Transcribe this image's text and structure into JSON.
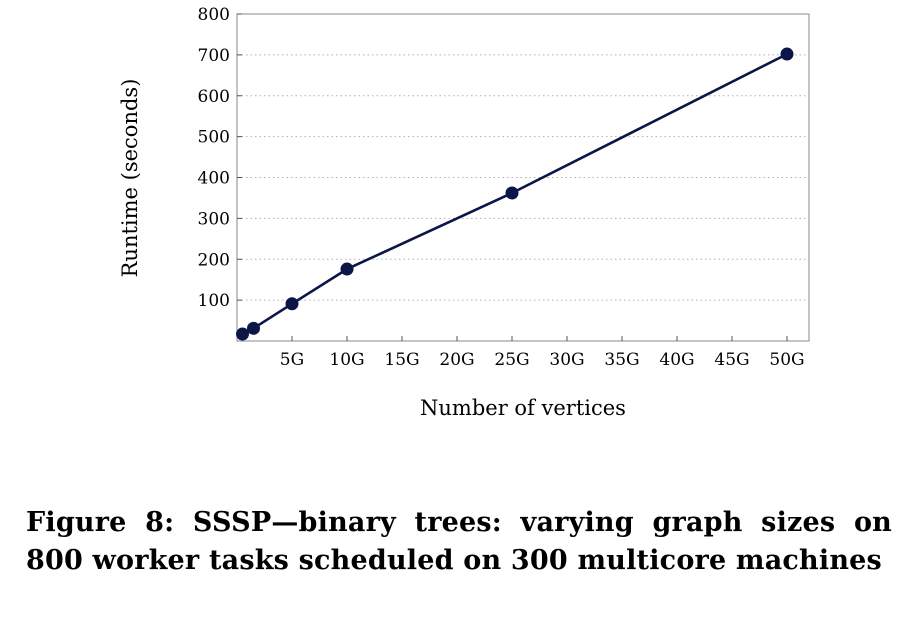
{
  "chart_data": {
    "type": "line",
    "title": "",
    "xlabel": "Number of vertices",
    "ylabel": "Runtime (seconds)",
    "xlim": [
      0,
      52
    ],
    "ylim": [
      0,
      800
    ],
    "x_ticks": [
      {
        "value": 5,
        "label": "5G"
      },
      {
        "value": 10,
        "label": "10G"
      },
      {
        "value": 15,
        "label": "15G"
      },
      {
        "value": 20,
        "label": "20G"
      },
      {
        "value": 25,
        "label": "25G"
      },
      {
        "value": 30,
        "label": "30G"
      },
      {
        "value": 35,
        "label": "35G"
      },
      {
        "value": 40,
        "label": "40G"
      },
      {
        "value": 45,
        "label": "45G"
      },
      {
        "value": 50,
        "label": "50G"
      }
    ],
    "y_ticks": [
      {
        "value": 100,
        "label": "100"
      },
      {
        "value": 200,
        "label": "200"
      },
      {
        "value": 300,
        "label": "300"
      },
      {
        "value": 400,
        "label": "400"
      },
      {
        "value": 500,
        "label": "500"
      },
      {
        "value": 600,
        "label": "600"
      },
      {
        "value": 700,
        "label": "700"
      },
      {
        "value": 800,
        "label": "800"
      }
    ],
    "grid": "horizontal-dotted",
    "series": [
      {
        "color": "#0b1547",
        "points": [
          {
            "x": 0.5,
            "y": 17
          },
          {
            "x": 1.5,
            "y": 31
          },
          {
            "x": 5,
            "y": 91
          },
          {
            "x": 10,
            "y": 176
          },
          {
            "x": 25,
            "y": 362
          },
          {
            "x": 50,
            "y": 702
          }
        ]
      }
    ]
  },
  "caption": "Figure 8: SSSP—binary trees: varying graph sizes on 800 worker tasks scheduled on 300 multicore machines"
}
